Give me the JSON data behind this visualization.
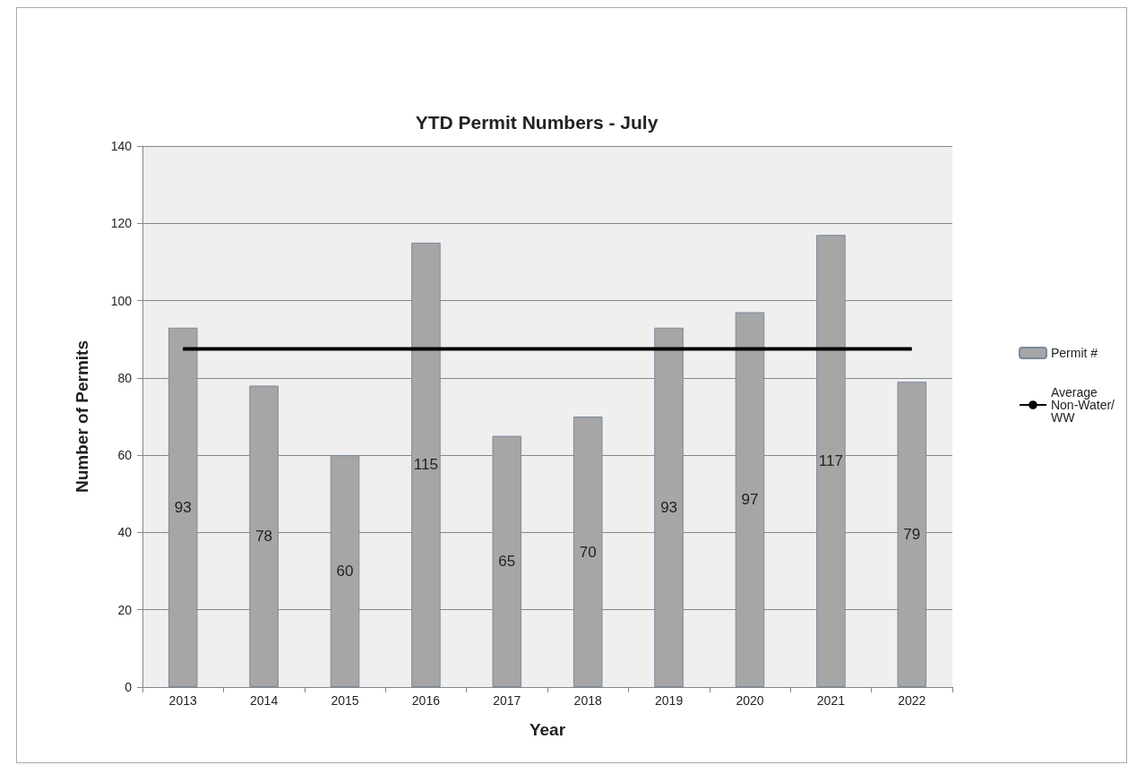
{
  "chart_data": {
    "type": "bar",
    "title": "YTD Permit Numbers - July",
    "xlabel": "Year",
    "ylabel": "Number of Permits",
    "categories": [
      "2013",
      "2014",
      "2015",
      "2016",
      "2017",
      "2018",
      "2019",
      "2020",
      "2021",
      "2022"
    ],
    "series": [
      {
        "name": "Permit #",
        "color": "#a6a6a6",
        "values": [
          93,
          78,
          60,
          115,
          65,
          70,
          93,
          97,
          117,
          79
        ],
        "value_labels": [
          "93",
          "78",
          "60",
          "115",
          "65",
          "70",
          "93",
          "97",
          "117",
          "79"
        ]
      },
      {
        "name": "Average Non-Water/WW",
        "type": "line",
        "color": "#000000",
        "values": [
          87.5,
          87.5,
          87.5,
          87.5,
          87.5,
          87.5,
          87.5,
          87.5,
          87.5,
          87.5
        ]
      }
    ],
    "ylim": [
      0,
      140
    ],
    "yticks": [
      0,
      20,
      40,
      60,
      80,
      100,
      120,
      140
    ],
    "grid": "y",
    "legend": "right",
    "marker": "none",
    "line_style": "solid"
  }
}
